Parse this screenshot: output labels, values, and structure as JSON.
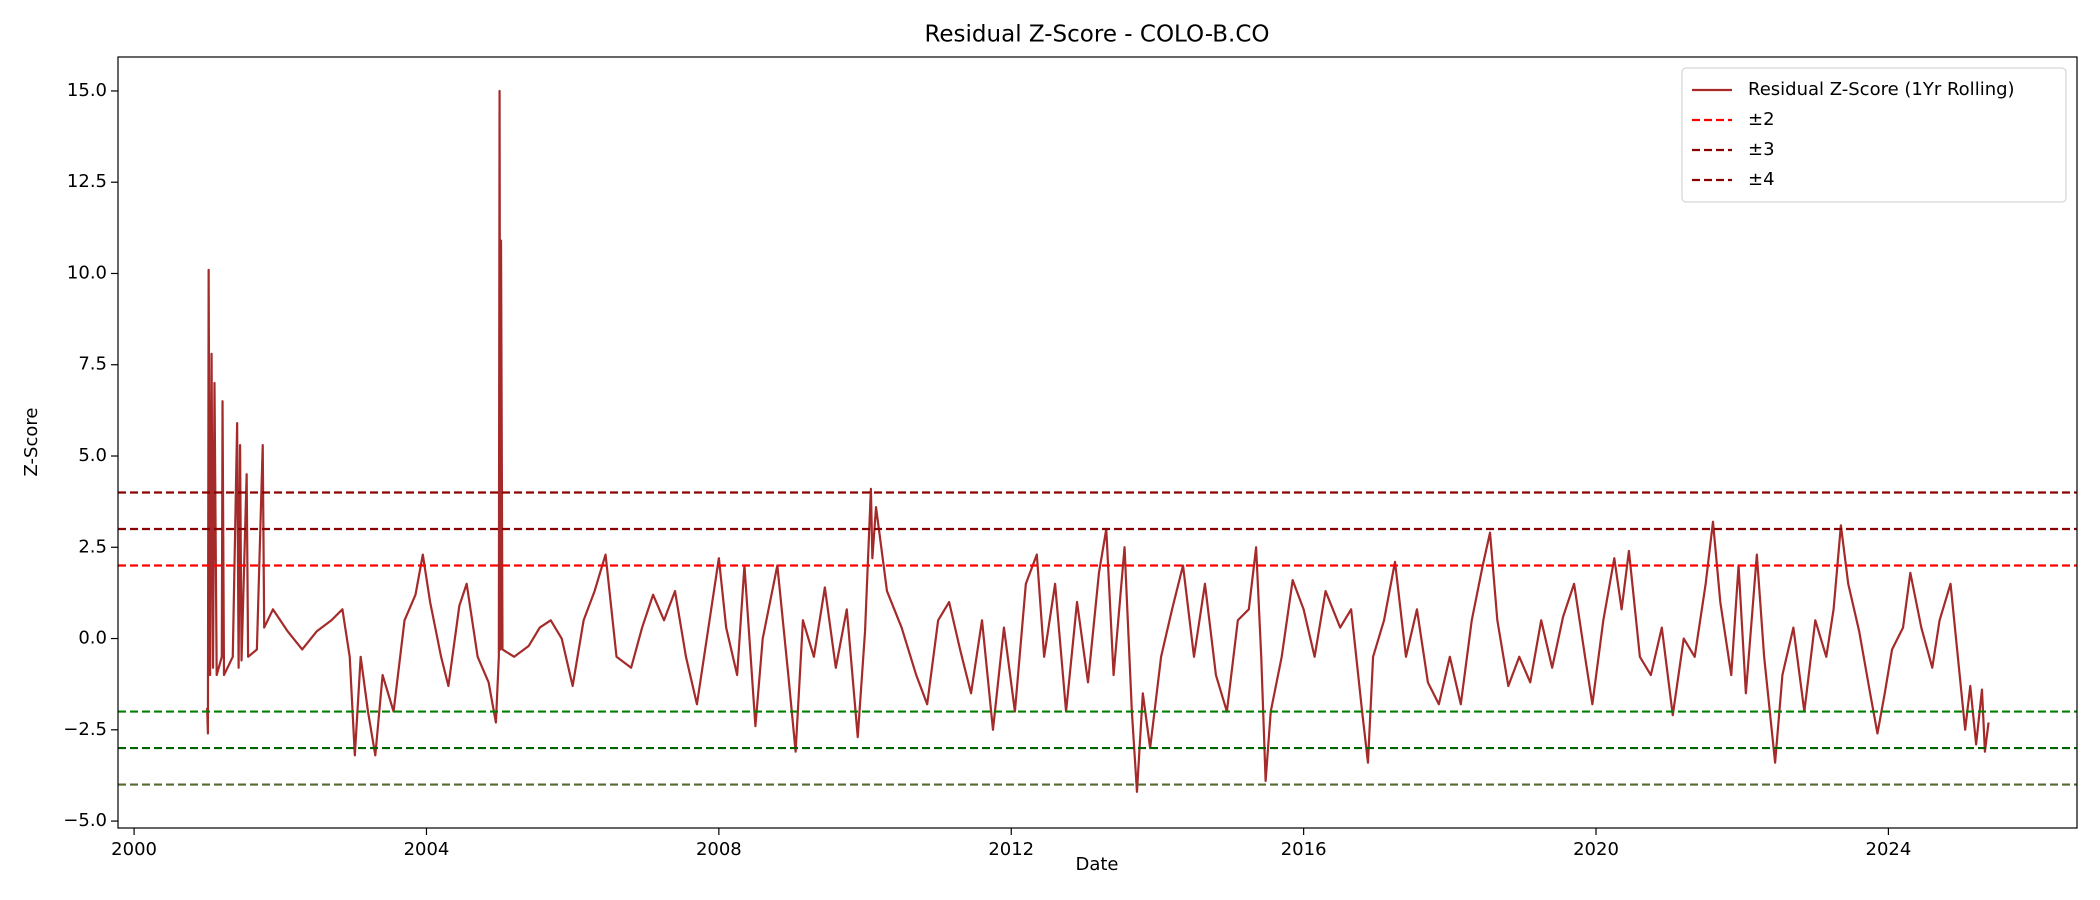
{
  "chart_data": {
    "type": "line",
    "title": "Residual Z-Score - COLO-B.CO",
    "x_label": "Date",
    "y_label": "Z-Score",
    "xlim": [
      1999.78,
      2026.58
    ],
    "ylim": [
      -5.19,
      15.93
    ],
    "xticks": [
      2000,
      2004,
      2008,
      2012,
      2016,
      2020,
      2024
    ],
    "yticks": [
      {
        "value": -5,
        "label": "−5.0"
      },
      {
        "value": -2.5,
        "label": "−2.5"
      },
      {
        "value": 0,
        "label": "0.0"
      },
      {
        "value": 2.5,
        "label": "2.5"
      },
      {
        "value": 5,
        "label": "5.0"
      },
      {
        "value": 7.5,
        "label": "7.5"
      },
      {
        "value": 10,
        "label": "10.0"
      },
      {
        "value": 12.5,
        "label": "12.5"
      },
      {
        "value": 15,
        "label": "15.0"
      }
    ],
    "grid": false,
    "legend": "upper right",
    "x": [
      2001.0,
      2001.01,
      2001.02,
      2001.04,
      2001.06,
      2001.08,
      2001.1,
      2001.13,
      2001.2,
      2001.21,
      2001.23,
      2001.35,
      2001.41,
      2001.43,
      2001.45,
      2001.47,
      2001.54,
      2001.56,
      2001.68,
      2001.76,
      2001.78,
      2001.9,
      2002.1,
      2002.3,
      2002.5,
      2002.7,
      2002.85,
      2002.95,
      2003.02,
      2003.1,
      2003.2,
      2003.3,
      2003.4,
      2003.55,
      2003.7,
      2003.85,
      2003.95,
      2004.05,
      2004.2,
      2004.3,
      2004.45,
      2004.55,
      2004.7,
      2004.85,
      2004.95,
      2004.99,
      2005.0,
      2005.01,
      2005.02,
      2005.04,
      2005.2,
      2005.4,
      2005.55,
      2005.7,
      2005.85,
      2006.0,
      2006.15,
      2006.3,
      2006.45,
      2006.6,
      2006.8,
      2006.95,
      2007.1,
      2007.25,
      2007.4,
      2007.55,
      2007.7,
      2007.85,
      2008.0,
      2008.1,
      2008.25,
      2008.35,
      2008.5,
      2008.6,
      2008.8,
      2008.95,
      2009.05,
      2009.15,
      2009.3,
      2009.45,
      2009.6,
      2009.75,
      2009.9,
      2010.0,
      2010.08,
      2010.1,
      2010.15,
      2010.3,
      2010.5,
      2010.7,
      2010.85,
      2011.0,
      2011.15,
      2011.3,
      2011.45,
      2011.6,
      2011.75,
      2011.9,
      2012.05,
      2012.2,
      2012.35,
      2012.45,
      2012.6,
      2012.75,
      2012.9,
      2013.05,
      2013.2,
      2013.3,
      2013.4,
      2013.55,
      2013.65,
      2013.72,
      2013.8,
      2013.9,
      2014.05,
      2014.2,
      2014.35,
      2014.5,
      2014.65,
      2014.8,
      2014.95,
      2015.1,
      2015.25,
      2015.35,
      2015.42,
      2015.48,
      2015.55,
      2015.7,
      2015.85,
      2016.0,
      2016.15,
      2016.3,
      2016.5,
      2016.65,
      2016.8,
      2016.88,
      2016.95,
      2017.1,
      2017.25,
      2017.4,
      2017.55,
      2017.7,
      2017.85,
      2018.0,
      2018.15,
      2018.3,
      2018.45,
      2018.55,
      2018.65,
      2018.8,
      2018.95,
      2019.1,
      2019.25,
      2019.4,
      2019.55,
      2019.7,
      2019.85,
      2019.95,
      2020.1,
      2020.25,
      2020.35,
      2020.45,
      2020.6,
      2020.75,
      2020.9,
      2021.05,
      2021.2,
      2021.35,
      2021.5,
      2021.6,
      2021.7,
      2021.85,
      2021.95,
      2022.05,
      2022.2,
      2022.3,
      2022.45,
      2022.55,
      2022.7,
      2022.85,
      2023.0,
      2023.15,
      2023.25,
      2023.35,
      2023.45,
      2023.6,
      2023.75,
      2023.85,
      2023.95,
      2024.05,
      2024.2,
      2024.3,
      2024.45,
      2024.6,
      2024.7,
      2024.85,
      2024.95,
      2025.05,
      2025.12,
      2025.2,
      2025.28,
      2025.32,
      2025.37
    ],
    "series": [
      {
        "name": "Residual Z-Score (1Yr Rolling)",
        "color": "#a52a2a",
        "values": [
          -1.9,
          -2.6,
          10.1,
          -1.0,
          7.8,
          -0.8,
          7.0,
          -1.0,
          -0.5,
          6.5,
          -1.0,
          -0.5,
          5.9,
          -0.8,
          5.3,
          -0.6,
          4.5,
          -0.5,
          -0.3,
          5.3,
          0.3,
          0.8,
          0.2,
          -0.3,
          0.2,
          0.5,
          0.8,
          -0.5,
          -3.2,
          -0.5,
          -2.0,
          -3.2,
          -1.0,
          -2.0,
          0.5,
          1.2,
          2.3,
          1.0,
          -0.5,
          -1.3,
          0.9,
          1.5,
          -0.5,
          -1.2,
          -2.3,
          -0.5,
          15.0,
          -0.3,
          10.9,
          -0.3,
          -0.5,
          -0.2,
          0.3,
          0.5,
          0.0,
          -1.3,
          0.5,
          1.3,
          2.3,
          -0.5,
          -0.8,
          0.3,
          1.2,
          0.5,
          1.3,
          -0.5,
          -1.8,
          0.2,
          2.2,
          0.3,
          -1.0,
          2.0,
          -2.4,
          0.0,
          2.0,
          -1.0,
          -3.1,
          0.5,
          -0.5,
          1.4,
          -0.8,
          0.8,
          -2.7,
          0.2,
          4.1,
          2.2,
          3.6,
          1.3,
          0.3,
          -1.0,
          -1.8,
          0.5,
          1.0,
          -0.3,
          -1.5,
          0.5,
          -2.5,
          0.3,
          -2.0,
          1.5,
          2.3,
          -0.5,
          1.5,
          -2.0,
          1.0,
          -1.2,
          1.8,
          3.0,
          -1.0,
          2.5,
          -2.0,
          -4.2,
          -1.5,
          -3.0,
          -0.5,
          0.8,
          2.0,
          -0.5,
          1.5,
          -1.0,
          -2.0,
          0.5,
          0.8,
          2.5,
          -0.5,
          -3.9,
          -2.0,
          -0.5,
          1.6,
          0.8,
          -0.5,
          1.3,
          0.3,
          0.8,
          -2.0,
          -3.4,
          -0.5,
          0.5,
          2.1,
          -0.5,
          0.8,
          -1.2,
          -1.8,
          -0.5,
          -1.8,
          0.5,
          2.0,
          2.9,
          0.5,
          -1.3,
          -0.5,
          -1.2,
          0.5,
          -0.8,
          0.6,
          1.5,
          -0.5,
          -1.8,
          0.5,
          2.2,
          0.8,
          2.4,
          -0.5,
          -1.0,
          0.3,
          -2.1,
          0.0,
          -0.5,
          1.5,
          3.2,
          1.0,
          -1.0,
          2.0,
          -1.5,
          2.3,
          -0.5,
          -3.4,
          -1.0,
          0.3,
          -2.0,
          0.5,
          -0.5,
          0.8,
          3.1,
          1.5,
          0.2,
          -1.5,
          -2.6,
          -1.5,
          -0.3,
          0.3,
          1.8,
          0.3,
          -0.8,
          0.5,
          1.5,
          -0.5,
          -2.5,
          -1.3,
          -2.9,
          -1.4,
          -3.1,
          -2.3
        ]
      }
    ],
    "reference_lines": [
      {
        "name": "±2",
        "values": [
          2,
          -2
        ],
        "colors": [
          "#ff0000",
          "#008000"
        ]
      },
      {
        "name": "±3",
        "values": [
          3,
          -3
        ],
        "colors": [
          "#8b0000",
          "#006400"
        ]
      },
      {
        "name": "±4",
        "values": [
          4,
          -4
        ],
        "colors": [
          "#8b0000",
          "#556b2f"
        ]
      }
    ]
  }
}
